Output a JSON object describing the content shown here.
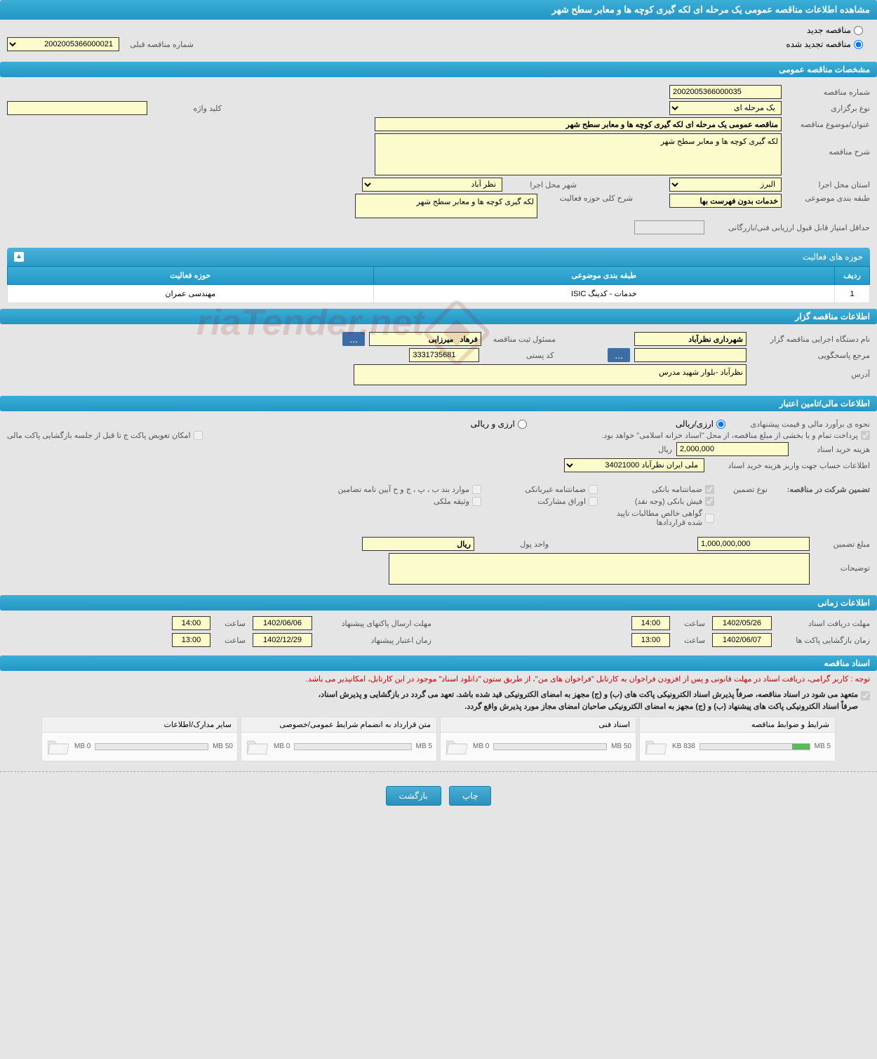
{
  "page_title": "مشاهده اطلاعات مناقصه عمومی یک مرحله ای لکه گیری کوچه ها و معابر سطح شهر",
  "radio_new": "مناقصه جدید",
  "radio_renewed": "مناقصه تجدید شده",
  "prev_tender_label": "شماره مناقصه قبلی",
  "prev_tender_value": "2002005366000021",
  "section_general": "مشخصات مناقصه عمومی",
  "tender_no_label": "شماره مناقصه",
  "tender_no": "2002005366000035",
  "holding_type_label": "نوع برگزاری",
  "holding_type": "یک مرحله ای",
  "keyword_label": "کلید واژه",
  "subject_label": "عنوان/موضوع مناقصه",
  "subject": "مناقصه عمومی یک مرحله ای لکه گیری کوچه ها و معابر سطح شهر",
  "desc_label": "شرح مناقصه",
  "desc": "لکه گیری کوچه ها و معابر سطح شهر",
  "province_label": "استان محل اجرا",
  "province": "البرز",
  "city_label": "شهر محل اجرا",
  "city": "نظر آباد",
  "category_label": "طبقه بندی موضوعی",
  "category": "خدمات بدون فهرست بها",
  "activity_desc_label": "شرح کلی حوزه فعالیت",
  "activity_desc": "لکه گیری کوچه ها و معابر سطح شهر",
  "min_score_label": "حداقل امتیاز قابل قبول ارزیابی فنی/بازرگانی",
  "activity_panel_title": "حوزه های فعالیت",
  "activity_headers": {
    "row": "ردیف",
    "category": "طبقه بندی موضوعی",
    "field": "حوزه فعالیت"
  },
  "activity_rows": [
    {
      "num": "1",
      "cat": "خدمات - کدینگ ISIC",
      "field": "مهندسی عمران"
    }
  ],
  "section_org": "اطلاعات مناقصه گزار",
  "org_name_label": "نام دستگاه اجرایی مناقصه گزار",
  "org_name": "شهرداری نظرآباد",
  "reg_mgr_label": "مسئول ثبت مناقصه",
  "reg_mgr": "فرهاد   میرزایی",
  "response_label": "مرجع پاسخگویی",
  "postal_label": "کد پستی",
  "postal": "3331735681",
  "address_label": "آدرس",
  "address": "نظرآباد -بلوار شهید مدرس",
  "section_finance": "اطلاعات مالی/تامین اعتبار",
  "estimate_label": "نحوه ی برآورد مالی و قیمت پیشنهادی",
  "currency_rial": "ارزی/ریالی",
  "currency_both": "ارزی و ریالی",
  "payment_note": "پرداخت تمام و یا بخشی از مبلغ مناقصه، از محل \"اسناد خزانه اسلامی\" خواهد بود.",
  "swap_note": "امکان تعویض پاکت ج تا قبل از جلسه بازگشایی پاکت مالی",
  "doc_cost_label": "هزینه خرید اسناد",
  "doc_cost": "2,000,000",
  "rial_unit": "ریال",
  "account_label": "اطلاعات حساب جهت واریز هزینه خرید اسناد",
  "account": "ملی ایران نظرآباد 34021000",
  "guarantee_title": "تضمین شرکت در مناقصه:",
  "guarantee_type_label": "نوع تضمین",
  "g_bank": "ضمانتنامه بانکی",
  "g_nonbank": "ضمانتنامه غیربانکی",
  "g_bonds": "موارد بند ب ، پ ، ج و ح آیین نامه تضامین",
  "g_cash": "فیش بانکی (وجه نقد)",
  "g_securities": "اوراق مشارکت",
  "g_property": "وثیقه ملکی",
  "g_claims": "گواهی خالص مطالبات تاپید شده قراردادها",
  "guarantee_amt_label": "مبلغ تضمین",
  "guarantee_amt": "1,000,000,000",
  "currency_unit_label": "واحد پول",
  "currency_unit": "ریال",
  "notes_label": "توضیحات",
  "section_time": "اطلاعات زمانی",
  "receive_label": "مهلت دریافت اسناد",
  "receive_date": "1402/05/26",
  "receive_time": "14:00",
  "submit_label": "مهلت ارسال پاکتهای پیشنهاد",
  "submit_date": "1402/06/06",
  "submit_time": "14:00",
  "open_label": "زمان بازگشایی پاکت ها",
  "open_date": "1402/06/07",
  "open_time": "13:00",
  "validity_label": "زمان اعتبار پیشنهاد",
  "validity_date": "1402/12/29",
  "validity_time": "13:00",
  "time_word": "ساعت",
  "section_docs": "اسناد مناقصه",
  "warning": "توجه : کاربر گرامی، دریافت اسناد در مهلت قانونی و پس از افزودن فراخوان به کارتابل \"فراخوان های من\"، از طریق ستون \"دانلود اسناد\" موجود در این کارتابل، امکانپذیر می باشد.",
  "commit1": "متعهد می شود در اسناد مناقصه، صرفاً پذیرش اسناد الکترونیکی پاکت های (ب) و (ج) مجهز به امضای الکترونیکی قید شده باشد. تعهد می گردد در بازگشایی و پذیرش اسناد،",
  "commit2": "صرفاً اسناد الکترونیکی پاکت های پیشنهاد (ب) و (ج) مجهز به امضای الکترونیکی صاحبان امضای مجاز مورد پذیرش واقع گردد.",
  "docs": [
    {
      "title": "شرایط و ضوابط مناقصه",
      "used": "838 KB",
      "total": "5 MB",
      "pct": 16
    },
    {
      "title": "اسناد فنی",
      "used": "0 MB",
      "total": "50 MB",
      "pct": 0
    },
    {
      "title": "متن قرارداد به انضمام شرایط عمومی/خصوصی",
      "used": "0 MB",
      "total": "5 MB",
      "pct": 0
    },
    {
      "title": "سایر مدارک/اطلاعات",
      "used": "0 MB",
      "total": "50 MB",
      "pct": 0
    }
  ],
  "btn_print": "چاپ",
  "btn_back": "بازگشت",
  "ellipsis": "...",
  "watermark": "riaTender.net"
}
